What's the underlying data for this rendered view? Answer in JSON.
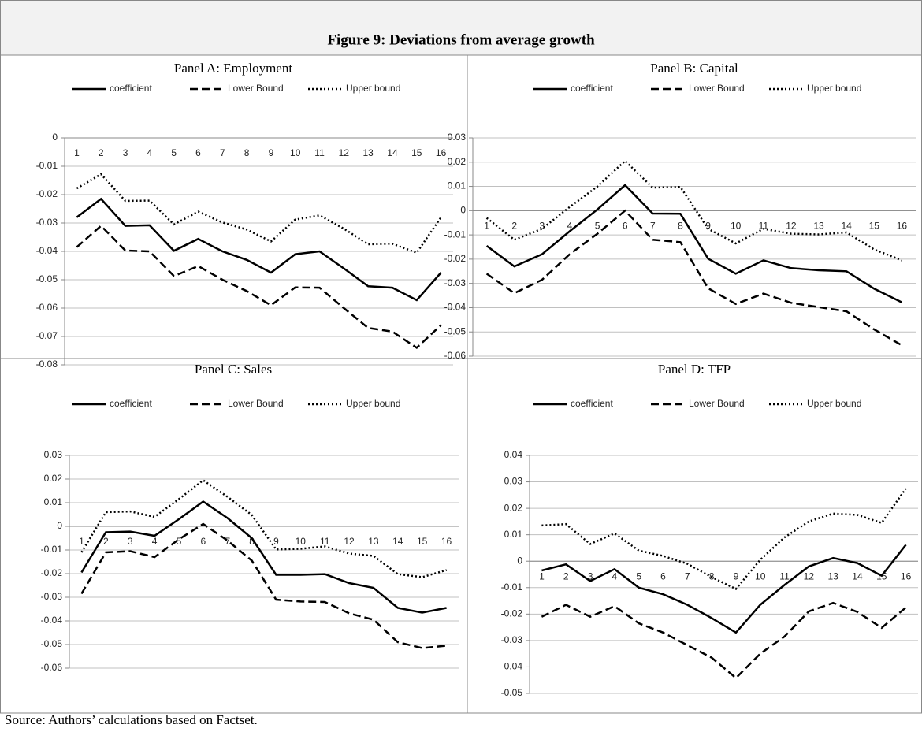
{
  "header": {
    "title": "Figure 9: Deviations from average growth"
  },
  "source": "Source: Authors’ calculations based on Factset.",
  "chart_data": [
    {
      "type": "line",
      "title": "Panel A: Employment",
      "categories": [
        "1",
        "2",
        "3",
        "4",
        "5",
        "6",
        "7",
        "8",
        "9",
        "10",
        "11",
        "12",
        "13",
        "14",
        "15",
        "16"
      ],
      "ylim": [
        -0.08,
        0
      ],
      "yticks": [
        0,
        -0.01,
        -0.02,
        -0.03,
        -0.04,
        -0.05,
        -0.06,
        -0.07,
        -0.08
      ],
      "grid": true,
      "series": [
        {
          "name": "coefficient",
          "color": "#000000",
          "dash": "solid",
          "values": [
            -0.028,
            -0.0215,
            -0.031,
            -0.0308,
            -0.0398,
            -0.0356,
            -0.04,
            -0.043,
            -0.0475,
            -0.041,
            -0.04,
            -0.046,
            -0.0523,
            -0.0528,
            -0.0572,
            -0.0475
          ]
        },
        {
          "name": "Lower Bound",
          "color": "#000000",
          "dash": "dashed",
          "values": [
            -0.0385,
            -0.031,
            -0.0397,
            -0.04,
            -0.0487,
            -0.0452,
            -0.05,
            -0.054,
            -0.059,
            -0.0527,
            -0.0528,
            -0.06,
            -0.067,
            -0.0683,
            -0.074,
            -0.066
          ]
        },
        {
          "name": "Upper bound",
          "color": "#000000",
          "dash": "dotted",
          "values": [
            -0.0178,
            -0.0128,
            -0.0222,
            -0.0221,
            -0.0305,
            -0.026,
            -0.0298,
            -0.0323,
            -0.0365,
            -0.0288,
            -0.0273,
            -0.032,
            -0.0375,
            -0.0373,
            -0.0405,
            -0.028
          ]
        }
      ]
    },
    {
      "type": "line",
      "title": "Panel B: Capital",
      "categories": [
        "1",
        "2",
        "3",
        "4",
        "5",
        "6",
        "7",
        "8",
        "9",
        "10",
        "11",
        "12",
        "13",
        "14",
        "15",
        "16"
      ],
      "ylim": [
        -0.06,
        0.03
      ],
      "yticks": [
        0.03,
        0.02,
        0.01,
        0,
        -0.01,
        -0.02,
        -0.03,
        -0.04,
        -0.05,
        -0.06
      ],
      "grid": true,
      "series": [
        {
          "name": "coefficient",
          "color": "#000000",
          "dash": "solid",
          "values": [
            -0.0145,
            -0.023,
            -0.018,
            -0.0085,
            0.0005,
            0.0105,
            -0.0012,
            -0.0013,
            -0.0198,
            -0.026,
            -0.0205,
            -0.0237,
            -0.0246,
            -0.025,
            -0.0322,
            -0.0378
          ]
        },
        {
          "name": "Lower Bound",
          "color": "#000000",
          "dash": "dashed",
          "values": [
            -0.026,
            -0.034,
            -0.0285,
            -0.018,
            -0.0095,
            0,
            -0.012,
            -0.013,
            -0.032,
            -0.0385,
            -0.0342,
            -0.038,
            -0.0398,
            -0.0415,
            -0.049,
            -0.0555
          ]
        },
        {
          "name": "Upper bound",
          "color": "#000000",
          "dash": "dotted",
          "values": [
            -0.003,
            -0.012,
            -0.0075,
            0.0015,
            0.01,
            0.0205,
            0.0095,
            0.0098,
            -0.0075,
            -0.0135,
            -0.0075,
            -0.0095,
            -0.0098,
            -0.009,
            -0.016,
            -0.0205
          ]
        }
      ]
    },
    {
      "type": "line",
      "title": "Panel C: Sales",
      "categories": [
        "1",
        "2",
        "3",
        "4",
        "5",
        "6",
        "7",
        "8",
        "9",
        "10",
        "11",
        "12",
        "13",
        "14",
        "15",
        "16"
      ],
      "ylim": [
        -0.06,
        0.03
      ],
      "yticks": [
        0.03,
        0.02,
        0.01,
        0,
        -0.01,
        -0.02,
        -0.03,
        -0.04,
        -0.05,
        -0.06
      ],
      "grid": true,
      "series": [
        {
          "name": "coefficient",
          "color": "#000000",
          "dash": "solid",
          "values": [
            -0.0195,
            -0.0025,
            -0.0022,
            -0.004,
            0.003,
            0.0105,
            0.0035,
            -0.005,
            -0.0205,
            -0.0205,
            -0.0202,
            -0.024,
            -0.026,
            -0.0345,
            -0.0365,
            -0.0345
          ]
        },
        {
          "name": "Lower Bound",
          "color": "#000000",
          "dash": "dashed",
          "values": [
            -0.0285,
            -0.011,
            -0.0105,
            -0.013,
            -0.0055,
            0.001,
            -0.006,
            -0.0145,
            -0.031,
            -0.0318,
            -0.032,
            -0.0368,
            -0.0395,
            -0.049,
            -0.0515,
            -0.0505
          ]
        },
        {
          "name": "Upper bound",
          "color": "#000000",
          "dash": "dotted",
          "values": [
            -0.011,
            0.006,
            0.0063,
            0.004,
            0.0115,
            0.0195,
            0.0125,
            0.0048,
            -0.0098,
            -0.0095,
            -0.0085,
            -0.0115,
            -0.0125,
            -0.0202,
            -0.0215,
            -0.0185
          ]
        }
      ]
    },
    {
      "type": "line",
      "title": "Panel D: TFP",
      "categories": [
        "1",
        "2",
        "3",
        "4",
        "5",
        "6",
        "7",
        "8",
        "9",
        "10",
        "11",
        "12",
        "13",
        "14",
        "15",
        "16"
      ],
      "ylim": [
        -0.05,
        0.04
      ],
      "yticks": [
        0.04,
        0.03,
        0.02,
        0.01,
        0,
        -0.01,
        -0.02,
        -0.03,
        -0.04,
        -0.05
      ],
      "grid": true,
      "series": [
        {
          "name": "coefficient",
          "color": "#000000",
          "dash": "solid",
          "values": [
            -0.0035,
            -0.0012,
            -0.0075,
            -0.003,
            -0.01,
            -0.0125,
            -0.0165,
            -0.0215,
            -0.027,
            -0.0165,
            -0.009,
            -0.002,
            0.0012,
            -0.0007,
            -0.0055,
            0.0062
          ]
        },
        {
          "name": "Lower Bound",
          "color": "#000000",
          "dash": "dashed",
          "values": [
            -0.021,
            -0.0165,
            -0.021,
            -0.017,
            -0.0235,
            -0.027,
            -0.0318,
            -0.0365,
            -0.0442,
            -0.035,
            -0.0285,
            -0.019,
            -0.0158,
            -0.0192,
            -0.0252,
            -0.0175
          ]
        },
        {
          "name": "Upper bound",
          "color": "#000000",
          "dash": "dotted",
          "values": [
            0.0135,
            0.014,
            0.0065,
            0.0105,
            0.004,
            0.002,
            -0.001,
            -0.006,
            -0.0105,
            0.0005,
            0.009,
            0.015,
            0.018,
            0.0175,
            0.0145,
            0.0275
          ]
        }
      ]
    }
  ]
}
